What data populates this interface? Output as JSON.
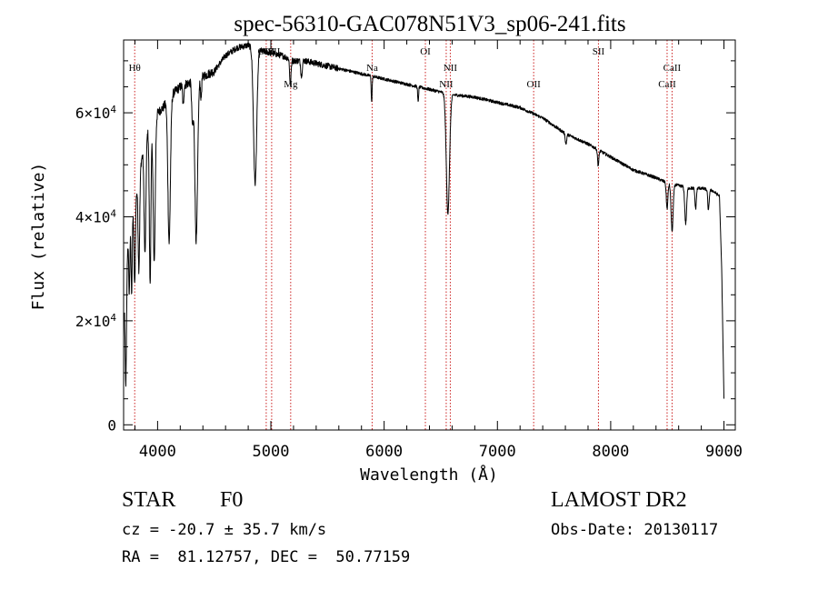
{
  "chart_data": {
    "type": "line",
    "title": "spec-56310-GAC078N51V3_sp06-241.fits",
    "xlabel": "Wavelength (Å)",
    "ylabel": "Flux (relative)",
    "xlim": [
      3700,
      9100
    ],
    "ylim": [
      -1000,
      74000
    ],
    "xticks": [
      4000,
      5000,
      6000,
      7000,
      8000,
      9000
    ],
    "yticks": [
      {
        "value": 0,
        "mantissa": "0",
        "exponent": ""
      },
      {
        "value": 20000,
        "mantissa": "2×10",
        "exponent": "4"
      },
      {
        "value": 40000,
        "mantissa": "4×10",
        "exponent": "4"
      },
      {
        "value": 60000,
        "mantissa": "6×10",
        "exponent": "4"
      }
    ],
    "grid": false,
    "line_color": "#000000",
    "marker_color": "#cc2222",
    "lines": [
      {
        "label": "Hθ",
        "wavelength": 3798,
        "row": 1
      },
      {
        "label": "OIII",
        "wavelength": 4959,
        "row": 0
      },
      {
        "label": "OIII",
        "wavelength": 5007,
        "row": 0
      },
      {
        "label": "Mg",
        "wavelength": 5175,
        "row": 2
      },
      {
        "label": "Na",
        "wavelength": 5894,
        "row": 1
      },
      {
        "label": "OI",
        "wavelength": 6364,
        "row": 0
      },
      {
        "label": "NII",
        "wavelength": 6548,
        "row": 2
      },
      {
        "label": "NII",
        "wavelength": 6584,
        "row": 1
      },
      {
        "label": "OII",
        "wavelength": 7320,
        "row": 2
      },
      {
        "label": "SII",
        "wavelength": 7892,
        "row": 0
      },
      {
        "label": "CaII",
        "wavelength": 8498,
        "row": 2
      },
      {
        "label": "CaII",
        "wavelength": 8542,
        "row": 1
      }
    ],
    "series": [
      {
        "continuum": [
          [
            3710,
            24000
          ],
          [
            3740,
            36000
          ],
          [
            3800,
            43000
          ],
          [
            3850,
            50000
          ],
          [
            3900,
            56000
          ],
          [
            3950,
            58000
          ],
          [
            4000,
            60000
          ],
          [
            4050,
            61000
          ],
          [
            4100,
            63000
          ],
          [
            4200,
            65000
          ],
          [
            4300,
            66000
          ],
          [
            4400,
            67000
          ],
          [
            4500,
            68000
          ],
          [
            4600,
            71000
          ],
          [
            4700,
            72500
          ],
          [
            4800,
            73000
          ],
          [
            4900,
            72000
          ],
          [
            5000,
            71500
          ],
          [
            5100,
            71000
          ],
          [
            5200,
            70000
          ],
          [
            5300,
            70000
          ],
          [
            5400,
            69500
          ],
          [
            5500,
            69000
          ],
          [
            5600,
            68500
          ],
          [
            5700,
            68000
          ],
          [
            5800,
            67500
          ],
          [
            5900,
            67000
          ],
          [
            6000,
            66500
          ],
          [
            6100,
            66000
          ],
          [
            6200,
            65500
          ],
          [
            6300,
            65000
          ],
          [
            6400,
            64500
          ],
          [
            6500,
            64000
          ],
          [
            6600,
            63500
          ],
          [
            6800,
            63000
          ],
          [
            7000,
            62000
          ],
          [
            7200,
            61000
          ],
          [
            7400,
            59000
          ],
          [
            7600,
            56000
          ],
          [
            7800,
            54000
          ],
          [
            8000,
            51500
          ],
          [
            8200,
            49000
          ],
          [
            8400,
            47500
          ],
          [
            8500,
            46500
          ],
          [
            8600,
            46000
          ],
          [
            8700,
            45500
          ],
          [
            8800,
            45500
          ],
          [
            8900,
            45000
          ],
          [
            8960,
            44000
          ],
          [
            8980,
            30000
          ],
          [
            9000,
            5000
          ]
        ],
        "absorption": [
          {
            "center": 3720,
            "depth": 20000,
            "width": 6
          },
          {
            "center": 3750,
            "depth": 12000,
            "width": 5
          },
          {
            "center": 3771,
            "depth": 14000,
            "width": 5
          },
          {
            "center": 3798,
            "depth": 16000,
            "width": 6
          },
          {
            "center": 3835,
            "depth": 18000,
            "width": 7
          },
          {
            "center": 3889,
            "depth": 22000,
            "width": 8
          },
          {
            "center": 3934,
            "depth": 30000,
            "width": 7
          },
          {
            "center": 3970,
            "depth": 28000,
            "width": 9
          },
          {
            "center": 4102,
            "depth": 28000,
            "width": 11
          },
          {
            "center": 4226,
            "depth": 4000,
            "width": 5
          },
          {
            "center": 4308,
            "depth": 8000,
            "width": 7
          },
          {
            "center": 4341,
            "depth": 31000,
            "width": 12
          },
          {
            "center": 4384,
            "depth": 4000,
            "width": 5
          },
          {
            "center": 4861,
            "depth": 26000,
            "width": 14
          },
          {
            "center": 5172,
            "depth": 5000,
            "width": 6
          },
          {
            "center": 5270,
            "depth": 3000,
            "width": 6
          },
          {
            "center": 5890,
            "depth": 5000,
            "width": 4
          },
          {
            "center": 6300,
            "depth": 3000,
            "width": 4
          },
          {
            "center": 6563,
            "depth": 23000,
            "width": 14
          },
          {
            "center": 7605,
            "depth": 2000,
            "width": 6
          },
          {
            "center": 7890,
            "depth": 3000,
            "width": 6
          },
          {
            "center": 8498,
            "depth": 5000,
            "width": 7
          },
          {
            "center": 8542,
            "depth": 9000,
            "width": 9
          },
          {
            "center": 8662,
            "depth": 7000,
            "width": 8
          },
          {
            "center": 8750,
            "depth": 4000,
            "width": 6
          },
          {
            "center": 8863,
            "depth": 4000,
            "width": 6
          }
        ]
      }
    ]
  },
  "info": {
    "object_class": "STAR",
    "subclass": "F0",
    "redshift": "cz = -20.7 ± 35.7 km/s",
    "coordinates": "RA =  81.12757, DEC =  50.77159",
    "survey": "LAMOST DR2",
    "obs_date": "Obs-Date: 20130117"
  }
}
